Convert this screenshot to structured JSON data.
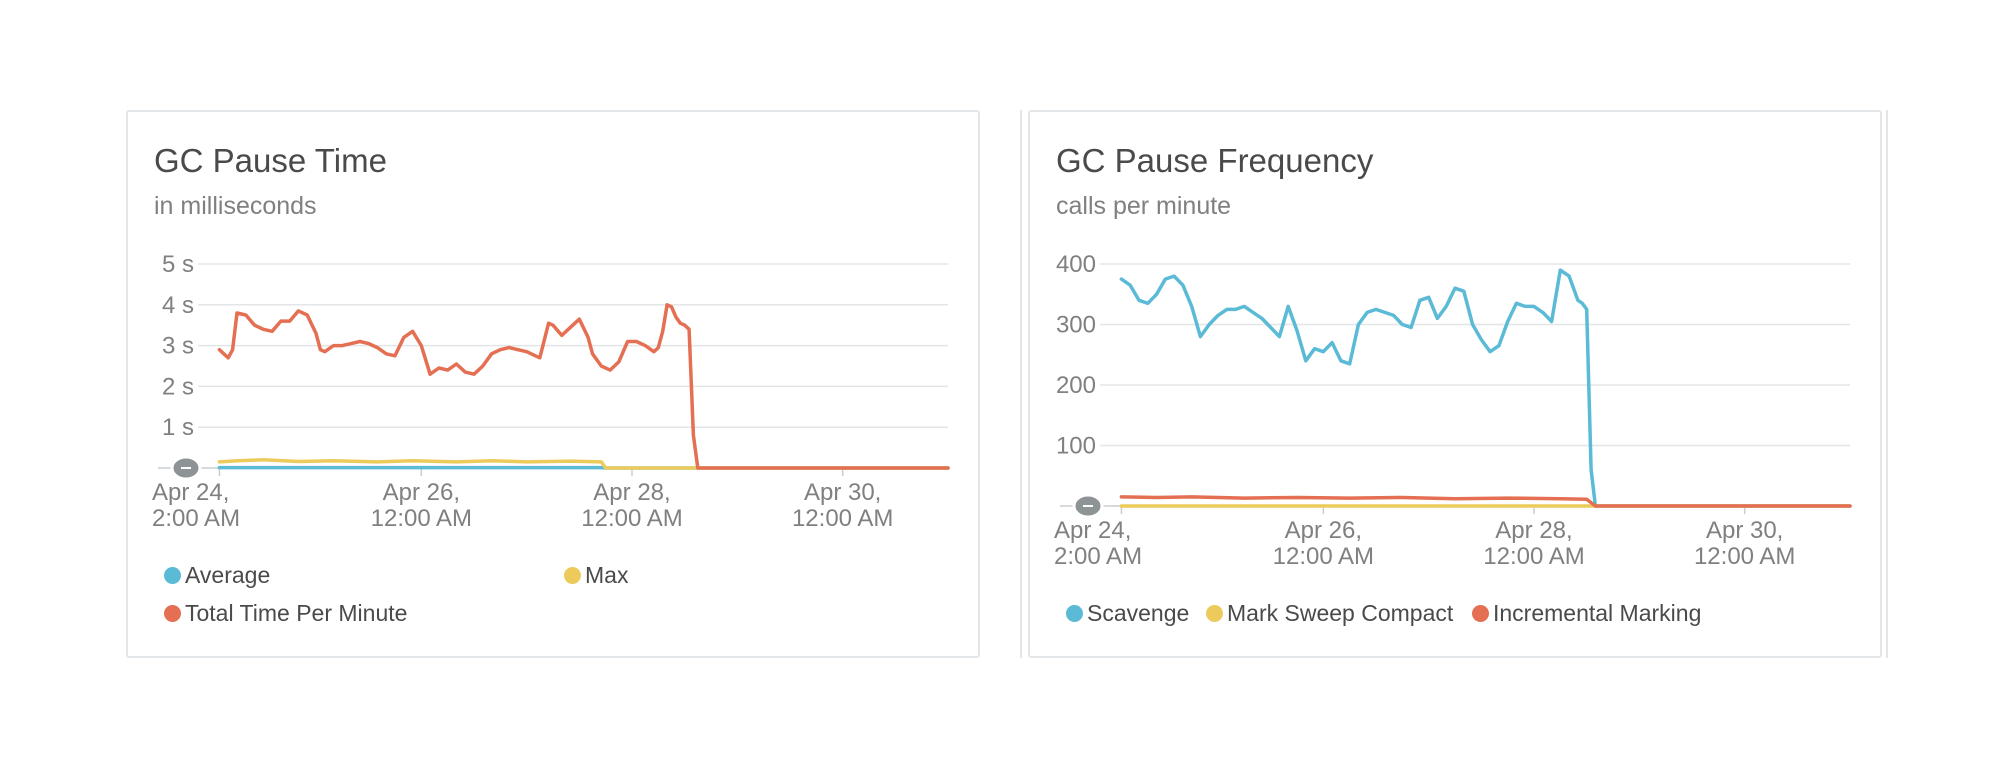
{
  "colors": {
    "blue": "#5bbad5",
    "yellow": "#eccb5c",
    "red": "#e46f52",
    "grid": "#e3e6e8",
    "tick_text": "#808080"
  },
  "panels": [
    {
      "title": "GC Pause Time",
      "subtitle": "in milliseconds",
      "legend": [
        {
          "label": "Average",
          "color": "#5bbad5"
        },
        {
          "label": "Max",
          "color": "#eccb5c"
        },
        {
          "label": "Total Time Per Minute",
          "color": "#e46f52"
        }
      ]
    },
    {
      "title": "GC Pause Frequency",
      "subtitle": "calls per minute",
      "legend": [
        {
          "label": "Scavenge",
          "color": "#5bbad5"
        },
        {
          "label": "Mark Sweep Compact",
          "color": "#eccb5c"
        },
        {
          "label": "Incremental Marking",
          "color": "#e46f52"
        }
      ]
    }
  ],
  "chart_data": [
    {
      "type": "line",
      "title": "GC Pause Time",
      "subtitle": "in milliseconds",
      "xlabel": "",
      "ylabel": "",
      "x_range": [
        "2019-04-23 12:00",
        "2019-05-01 00:00"
      ],
      "ylim": [
        0,
        5
      ],
      "y_ticks": [
        1,
        2,
        3,
        4,
        5
      ],
      "y_tick_labels": [
        "1 s",
        "2 s",
        "3 s",
        "4 s",
        "5 s"
      ],
      "x_ticks": [
        {
          "t": "2019-04-24 02:00",
          "line1": "Apr 24,",
          "line2": "2:00 AM"
        },
        {
          "t": "2019-04-26 00:00",
          "line1": "Apr 26,",
          "line2": "12:00 AM"
        },
        {
          "t": "2019-04-28 00:00",
          "line1": "Apr 28,",
          "line2": "12:00 AM"
        },
        {
          "t": "2019-04-30 00:00",
          "line1": "Apr 30,",
          "line2": "12:00 AM"
        }
      ],
      "grid": true,
      "legend_position": "bottom",
      "series": [
        {
          "name": "Average",
          "color": "#5bbad5",
          "points": [
            [
              "2019-04-24 02:00",
              0.01
            ],
            [
              "2019-04-27 17:00",
              0.01
            ],
            [
              "2019-04-27 18:00",
              0
            ],
            [
              "2019-05-01 00:00",
              0
            ]
          ]
        },
        {
          "name": "Max",
          "color": "#eccb5c",
          "points": [
            [
              "2019-04-24 02:00",
              0.15
            ],
            [
              "2019-04-24 06:00",
              0.18
            ],
            [
              "2019-04-24 12:00",
              0.2
            ],
            [
              "2019-04-24 20:00",
              0.16
            ],
            [
              "2019-04-25 04:00",
              0.18
            ],
            [
              "2019-04-25 14:00",
              0.15
            ],
            [
              "2019-04-25 22:00",
              0.18
            ],
            [
              "2019-04-26 08:00",
              0.15
            ],
            [
              "2019-04-26 16:00",
              0.18
            ],
            [
              "2019-04-27 00:00",
              0.15
            ],
            [
              "2019-04-27 10:00",
              0.17
            ],
            [
              "2019-04-27 17:00",
              0.15
            ],
            [
              "2019-04-27 18:00",
              0
            ],
            [
              "2019-05-01 00:00",
              0
            ]
          ]
        },
        {
          "name": "Total Time Per Minute",
          "color": "#e46f52",
          "points": [
            [
              "2019-04-24 02:00",
              2.9
            ],
            [
              "2019-04-24 03:00",
              2.8
            ],
            [
              "2019-04-24 04:00",
              2.7
            ],
            [
              "2019-04-24 05:00",
              2.9
            ],
            [
              "2019-04-24 06:00",
              3.8
            ],
            [
              "2019-04-24 08:00",
              3.75
            ],
            [
              "2019-04-24 10:00",
              3.5
            ],
            [
              "2019-04-24 12:00",
              3.4
            ],
            [
              "2019-04-24 14:00",
              3.35
            ],
            [
              "2019-04-24 16:00",
              3.6
            ],
            [
              "2019-04-24 18:00",
              3.6
            ],
            [
              "2019-04-24 20:00",
              3.85
            ],
            [
              "2019-04-24 22:00",
              3.75
            ],
            [
              "2019-04-25 00:00",
              3.3
            ],
            [
              "2019-04-25 01:00",
              2.9
            ],
            [
              "2019-04-25 02:00",
              2.85
            ],
            [
              "2019-04-25 04:00",
              3.0
            ],
            [
              "2019-04-25 06:00",
              3.0
            ],
            [
              "2019-04-25 08:00",
              3.05
            ],
            [
              "2019-04-25 10:00",
              3.1
            ],
            [
              "2019-04-25 12:00",
              3.05
            ],
            [
              "2019-04-25 14:00",
              2.95
            ],
            [
              "2019-04-25 16:00",
              2.8
            ],
            [
              "2019-04-25 18:00",
              2.75
            ],
            [
              "2019-04-25 20:00",
              3.2
            ],
            [
              "2019-04-25 22:00",
              3.35
            ],
            [
              "2019-04-26 00:00",
              3.0
            ],
            [
              "2019-04-26 02:00",
              2.3
            ],
            [
              "2019-04-26 04:00",
              2.45
            ],
            [
              "2019-04-26 06:00",
              2.4
            ],
            [
              "2019-04-26 08:00",
              2.55
            ],
            [
              "2019-04-26 10:00",
              2.35
            ],
            [
              "2019-04-26 12:00",
              2.3
            ],
            [
              "2019-04-26 14:00",
              2.5
            ],
            [
              "2019-04-26 16:00",
              2.8
            ],
            [
              "2019-04-26 18:00",
              2.9
            ],
            [
              "2019-04-26 20:00",
              2.95
            ],
            [
              "2019-04-26 22:00",
              2.9
            ],
            [
              "2019-04-27 00:00",
              2.85
            ],
            [
              "2019-04-27 02:00",
              2.75
            ],
            [
              "2019-04-27 03:00",
              2.7
            ],
            [
              "2019-04-27 05:00",
              3.55
            ],
            [
              "2019-04-27 06:00",
              3.5
            ],
            [
              "2019-04-27 08:00",
              3.25
            ],
            [
              "2019-04-27 10:00",
              3.45
            ],
            [
              "2019-04-27 12:00",
              3.65
            ],
            [
              "2019-04-27 14:00",
              3.2
            ],
            [
              "2019-04-27 15:00",
              2.8
            ],
            [
              "2019-04-27 17:00",
              2.5
            ],
            [
              "2019-04-27 19:00",
              2.4
            ],
            [
              "2019-04-27 21:00",
              2.6
            ],
            [
              "2019-04-27 23:00",
              3.1
            ],
            [
              "2019-04-28 01:00",
              3.1
            ],
            [
              "2019-04-28 03:00",
              3.0
            ],
            [
              "2019-04-28 05:00",
              2.85
            ],
            [
              "2019-04-28 06:00",
              2.95
            ],
            [
              "2019-04-28 07:00",
              3.35
            ],
            [
              "2019-04-28 08:00",
              4.0
            ],
            [
              "2019-04-28 09:00",
              3.95
            ],
            [
              "2019-04-28 10:00",
              3.7
            ],
            [
              "2019-04-28 11:00",
              3.55
            ],
            [
              "2019-04-28 12:00",
              3.5
            ],
            [
              "2019-04-28 13:00",
              3.4
            ],
            [
              "2019-04-28 14:00",
              0.8
            ],
            [
              "2019-04-28 15:00",
              0
            ],
            [
              "2019-05-01 00:00",
              0
            ]
          ]
        }
      ]
    },
    {
      "type": "line",
      "title": "GC Pause Frequency",
      "subtitle": "calls per minute",
      "xlabel": "",
      "ylabel": "",
      "x_range": [
        "2019-04-23 12:00",
        "2019-05-01 00:00"
      ],
      "ylim": [
        0,
        400
      ],
      "y_ticks": [
        100,
        200,
        300,
        400
      ],
      "y_tick_labels": [
        "100",
        "200",
        "300",
        "400"
      ],
      "x_ticks": [
        {
          "t": "2019-04-24 02:00",
          "line1": "Apr 24,",
          "line2": "2:00 AM"
        },
        {
          "t": "2019-04-26 00:00",
          "line1": "Apr 26,",
          "line2": "12:00 AM"
        },
        {
          "t": "2019-04-28 00:00",
          "line1": "Apr 28,",
          "line2": "12:00 AM"
        },
        {
          "t": "2019-04-30 00:00",
          "line1": "Apr 30,",
          "line2": "12:00 AM"
        }
      ],
      "grid": true,
      "legend_position": "bottom",
      "series": [
        {
          "name": "Scavenge",
          "color": "#5bbad5",
          "points": [
            [
              "2019-04-24 02:00",
              375
            ],
            [
              "2019-04-24 04:00",
              365
            ],
            [
              "2019-04-24 06:00",
              340
            ],
            [
              "2019-04-24 08:00",
              335
            ],
            [
              "2019-04-24 10:00",
              350
            ],
            [
              "2019-04-24 12:00",
              375
            ],
            [
              "2019-04-24 14:00",
              380
            ],
            [
              "2019-04-24 16:00",
              365
            ],
            [
              "2019-04-24 18:00",
              330
            ],
            [
              "2019-04-24 20:00",
              280
            ],
            [
              "2019-04-24 22:00",
              300
            ],
            [
              "2019-04-25 00:00",
              315
            ],
            [
              "2019-04-25 02:00",
              325
            ],
            [
              "2019-04-25 04:00",
              325
            ],
            [
              "2019-04-25 06:00",
              330
            ],
            [
              "2019-04-25 08:00",
              320
            ],
            [
              "2019-04-25 10:00",
              310
            ],
            [
              "2019-04-25 12:00",
              295
            ],
            [
              "2019-04-25 14:00",
              280
            ],
            [
              "2019-04-25 16:00",
              330
            ],
            [
              "2019-04-25 18:00",
              290
            ],
            [
              "2019-04-25 20:00",
              240
            ],
            [
              "2019-04-25 22:00",
              260
            ],
            [
              "2019-04-26 00:00",
              255
            ],
            [
              "2019-04-26 02:00",
              270
            ],
            [
              "2019-04-26 04:00",
              240
            ],
            [
              "2019-04-26 06:00",
              235
            ],
            [
              "2019-04-26 08:00",
              300
            ],
            [
              "2019-04-26 10:00",
              320
            ],
            [
              "2019-04-26 12:00",
              325
            ],
            [
              "2019-04-26 14:00",
              320
            ],
            [
              "2019-04-26 16:00",
              315
            ],
            [
              "2019-04-26 18:00",
              300
            ],
            [
              "2019-04-26 20:00",
              295
            ],
            [
              "2019-04-26 22:00",
              340
            ],
            [
              "2019-04-27 00:00",
              345
            ],
            [
              "2019-04-27 02:00",
              310
            ],
            [
              "2019-04-27 04:00",
              330
            ],
            [
              "2019-04-27 06:00",
              360
            ],
            [
              "2019-04-27 08:00",
              355
            ],
            [
              "2019-04-27 10:00",
              300
            ],
            [
              "2019-04-27 12:00",
              275
            ],
            [
              "2019-04-27 14:00",
              255
            ],
            [
              "2019-04-27 16:00",
              265
            ],
            [
              "2019-04-27 18:00",
              305
            ],
            [
              "2019-04-27 20:00",
              335
            ],
            [
              "2019-04-27 22:00",
              330
            ],
            [
              "2019-04-28 00:00",
              330
            ],
            [
              "2019-04-28 02:00",
              320
            ],
            [
              "2019-04-28 04:00",
              305
            ],
            [
              "2019-04-28 06:00",
              390
            ],
            [
              "2019-04-28 08:00",
              380
            ],
            [
              "2019-04-28 10:00",
              340
            ],
            [
              "2019-04-28 11:00",
              335
            ],
            [
              "2019-04-28 12:00",
              325
            ],
            [
              "2019-04-28 13:00",
              60
            ],
            [
              "2019-04-28 14:00",
              0
            ],
            [
              "2019-05-01 00:00",
              0
            ]
          ]
        },
        {
          "name": "Mark Sweep Compact",
          "color": "#eccb5c",
          "points": [
            [
              "2019-04-24 02:00",
              0
            ],
            [
              "2019-05-01 00:00",
              0
            ]
          ]
        },
        {
          "name": "Incremental Marking",
          "color": "#e46f52",
          "points": [
            [
              "2019-04-24 02:00",
              15
            ],
            [
              "2019-04-24 10:00",
              14
            ],
            [
              "2019-04-24 18:00",
              15
            ],
            [
              "2019-04-25 06:00",
              13
            ],
            [
              "2019-04-25 18:00",
              14
            ],
            [
              "2019-04-26 06:00",
              13
            ],
            [
              "2019-04-26 18:00",
              14
            ],
            [
              "2019-04-27 06:00",
              12
            ],
            [
              "2019-04-27 18:00",
              13
            ],
            [
              "2019-04-28 06:00",
              12
            ],
            [
              "2019-04-28 12:00",
              11
            ],
            [
              "2019-04-28 14:00",
              0
            ],
            [
              "2019-05-01 00:00",
              0
            ]
          ]
        }
      ]
    }
  ]
}
